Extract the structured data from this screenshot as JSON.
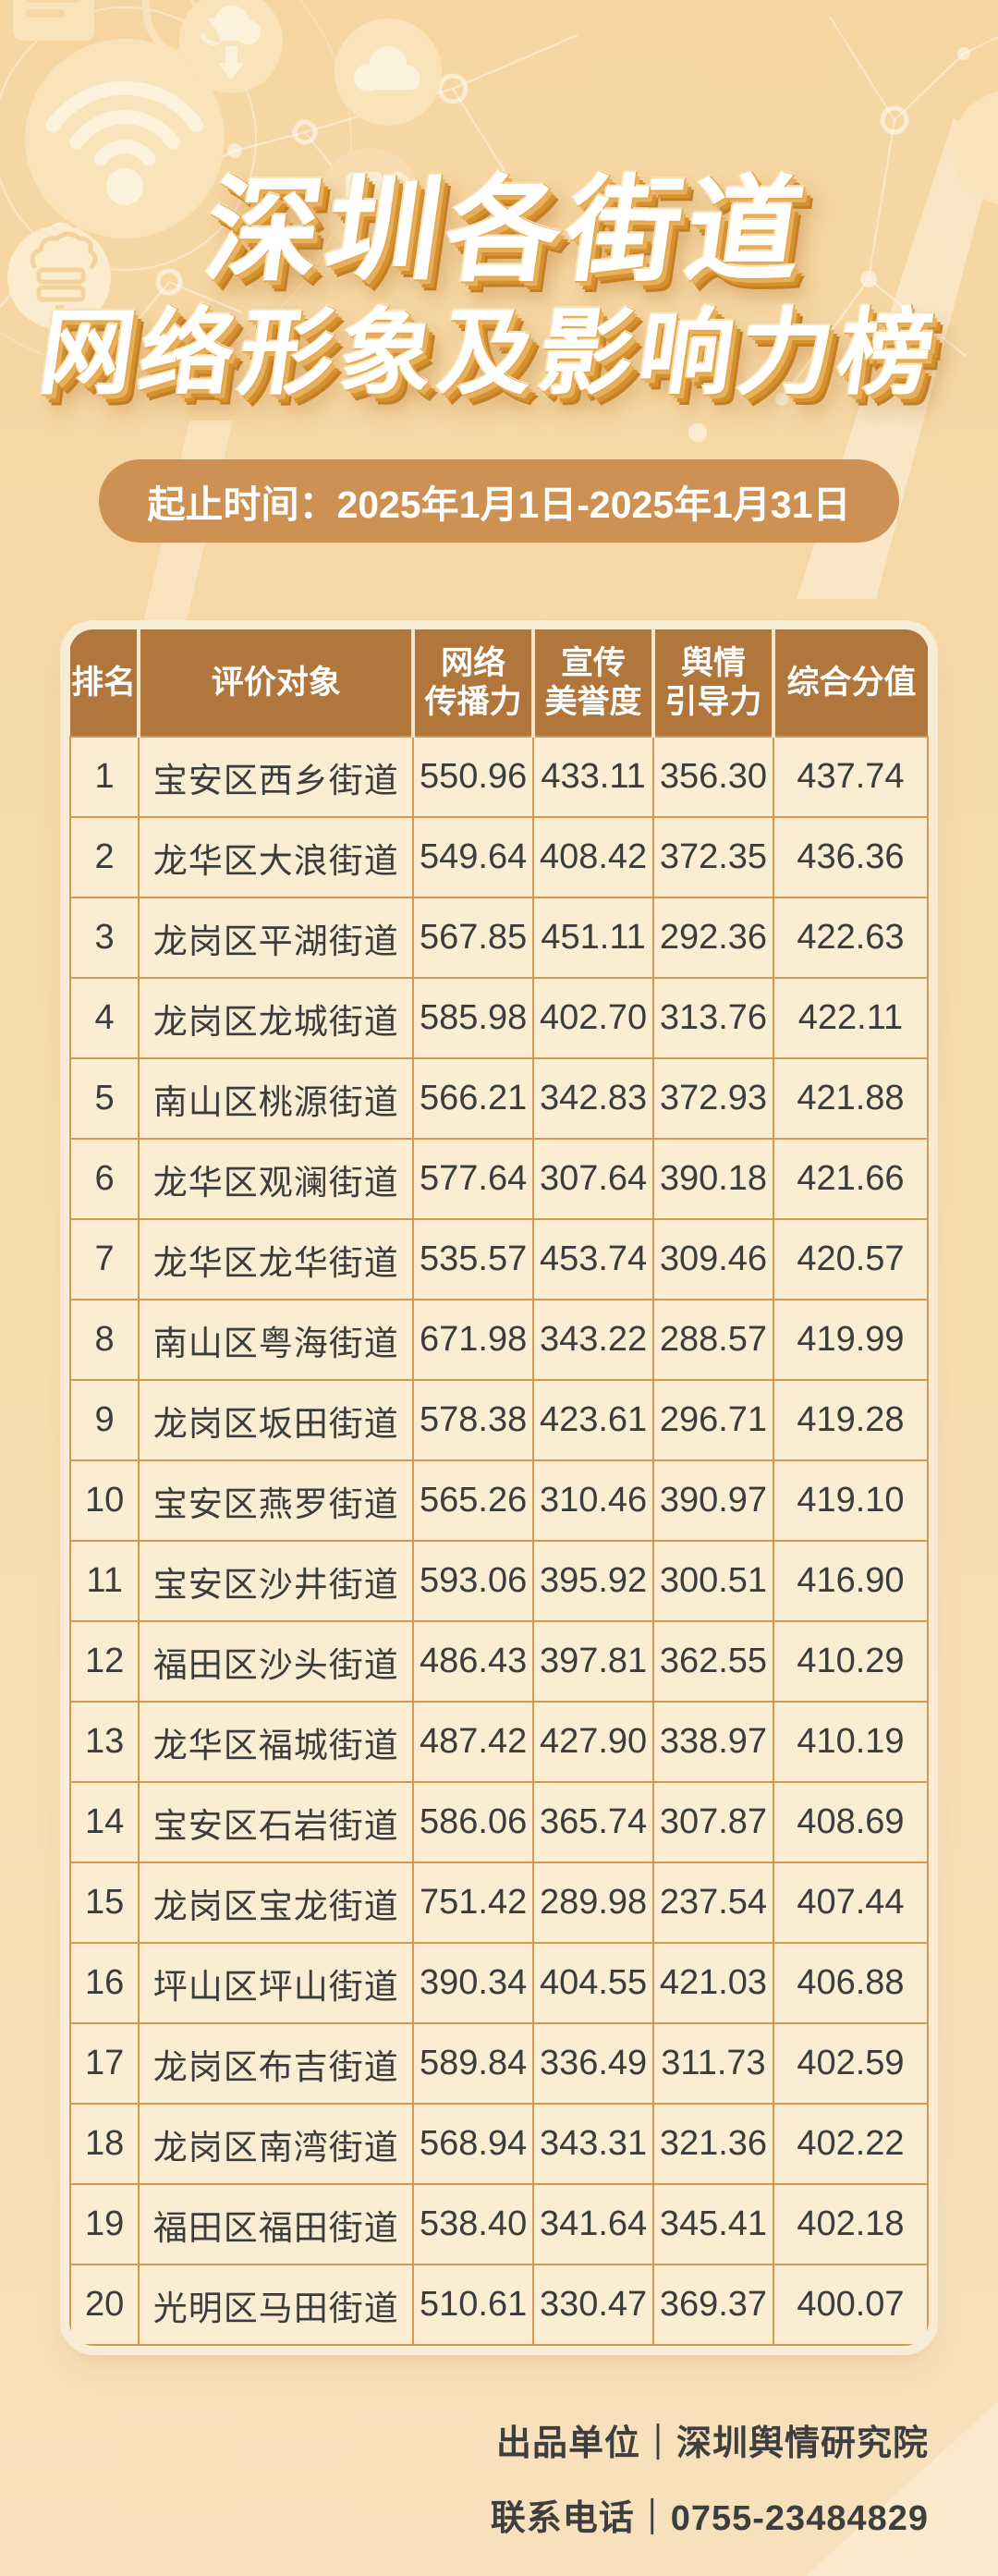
{
  "title": {
    "line1": "深圳各街道",
    "line2": "网络形象及影响力榜"
  },
  "banner": {
    "text": "起止时间：2025年1月1日-2025年1月31日"
  },
  "table": {
    "header_labels": [
      "排名",
      "评价对象",
      "网络\n传播力",
      "宣传\n美誉度",
      "舆情\n引导力",
      "综合分值"
    ]
  },
  "footer": {
    "producer": "出品单位｜深圳舆情研究院",
    "contact": "联系电话｜0755-23484829"
  },
  "colors": {
    "page_background_top": "#F6D5A0",
    "page_background_bottom": "#F7E1BC",
    "banner_background": "#CC9153",
    "table_header_background": "#B1763C",
    "table_cell_background": "#FAEDD3",
    "table_border": "#D6984C",
    "table_outer_ring": "#F9ECD6",
    "body_text": "#3C3C3C",
    "title_text": "#FFFFFF",
    "title_shadow": "#CD8527",
    "decor_icon": "#F8E3BA"
  },
  "decor_icons": [
    "monitor-icon",
    "shield-pen-icon",
    "wifi-icon",
    "cloud-download-icon",
    "cloud-icon",
    "cloud-server-icon",
    "phone-wifi-icon",
    "network-nodes"
  ],
  "chart_data": {
    "type": "table",
    "title": "深圳各街道网络形象及影响力榜",
    "period": "2025年1月1日-2025年1月31日",
    "columns": [
      "排名",
      "评价对象",
      "网络传播力",
      "宣传美誉度",
      "舆情引导力",
      "综合分值"
    ],
    "rows": [
      [
        1,
        "宝安区西乡街道",
        550.96,
        433.11,
        356.3,
        437.74
      ],
      [
        2,
        "龙华区大浪街道",
        549.64,
        408.42,
        372.35,
        436.36
      ],
      [
        3,
        "龙岗区平湖街道",
        567.85,
        451.11,
        292.36,
        422.63
      ],
      [
        4,
        "龙岗区龙城街道",
        585.98,
        402.7,
        313.76,
        422.11
      ],
      [
        5,
        "南山区桃源街道",
        566.21,
        342.83,
        372.93,
        421.88
      ],
      [
        6,
        "龙华区观澜街道",
        577.64,
        307.64,
        390.18,
        421.66
      ],
      [
        7,
        "龙华区龙华街道",
        535.57,
        453.74,
        309.46,
        420.57
      ],
      [
        8,
        "南山区粤海街道",
        671.98,
        343.22,
        288.57,
        419.99
      ],
      [
        9,
        "龙岗区坂田街道",
        578.38,
        423.61,
        296.71,
        419.28
      ],
      [
        10,
        "宝安区燕罗街道",
        565.26,
        310.46,
        390.97,
        419.1
      ],
      [
        11,
        "宝安区沙井街道",
        593.06,
        395.92,
        300.51,
        416.9
      ],
      [
        12,
        "福田区沙头街道",
        486.43,
        397.81,
        362.55,
        410.29
      ],
      [
        13,
        "龙华区福城街道",
        487.42,
        427.9,
        338.97,
        410.19
      ],
      [
        14,
        "宝安区石岩街道",
        586.06,
        365.74,
        307.87,
        408.69
      ],
      [
        15,
        "龙岗区宝龙街道",
        751.42,
        289.98,
        237.54,
        407.44
      ],
      [
        16,
        "坪山区坪山街道",
        390.34,
        404.55,
        421.03,
        406.88
      ],
      [
        17,
        "龙岗区布吉街道",
        589.84,
        336.49,
        311.73,
        402.59
      ],
      [
        18,
        "龙岗区南湾街道",
        568.94,
        343.31,
        321.36,
        402.22
      ],
      [
        19,
        "福田区福田街道",
        538.4,
        341.64,
        345.41,
        402.18
      ],
      [
        20,
        "光明区马田街道",
        510.61,
        330.47,
        369.37,
        400.07
      ]
    ]
  }
}
